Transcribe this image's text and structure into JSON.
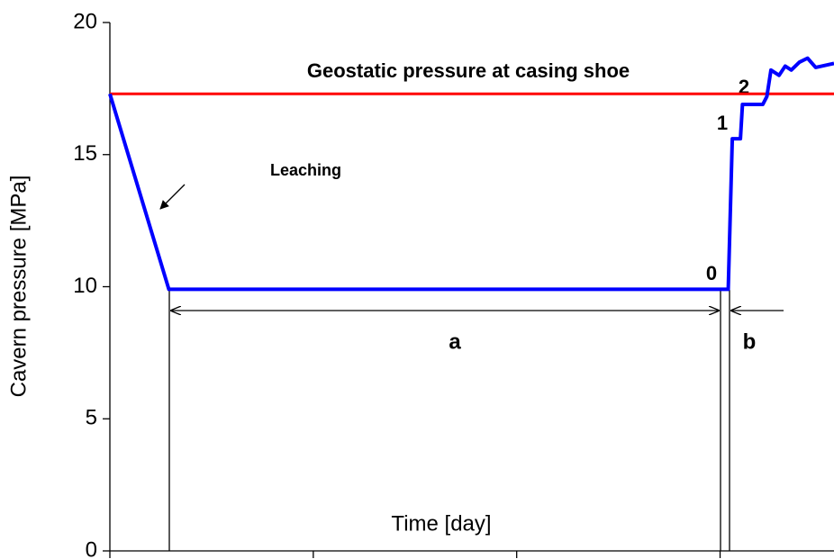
{
  "chart_data": {
    "type": "line",
    "ylabel": "Cavern pressure [MPa]",
    "xlabel": "Time [day]",
    "xlim": [
      0,
      3.56
    ],
    "xticks": [
      0,
      1,
      2,
      3
    ],
    "ylim": [
      0,
      20
    ],
    "yticks": [
      0,
      5,
      10,
      15,
      20
    ],
    "series": [
      {
        "color": "#0000ff",
        "x": [
          0,
          0.29,
          3.04,
          3.06,
          3.1,
          3.11,
          3.21,
          3.23,
          3.25,
          3.29,
          3.32,
          3.35,
          3.39,
          3.43,
          3.47,
          3.53,
          3.56
        ],
        "values": [
          17.3,
          9.9,
          9.9,
          15.6,
          15.6,
          16.9,
          16.9,
          17.2,
          18.2,
          18.0,
          18.35,
          18.2,
          18.5,
          18.65,
          18.3,
          18.4,
          18.45
        ]
      }
    ],
    "reference_line": {
      "value": 17.3,
      "color": "#ff0000",
      "label": "Geostatic pressure at casing shoe"
    },
    "annotations": [
      "Leaching",
      "0",
      "1",
      "2",
      "a",
      "b"
    ]
  }
}
